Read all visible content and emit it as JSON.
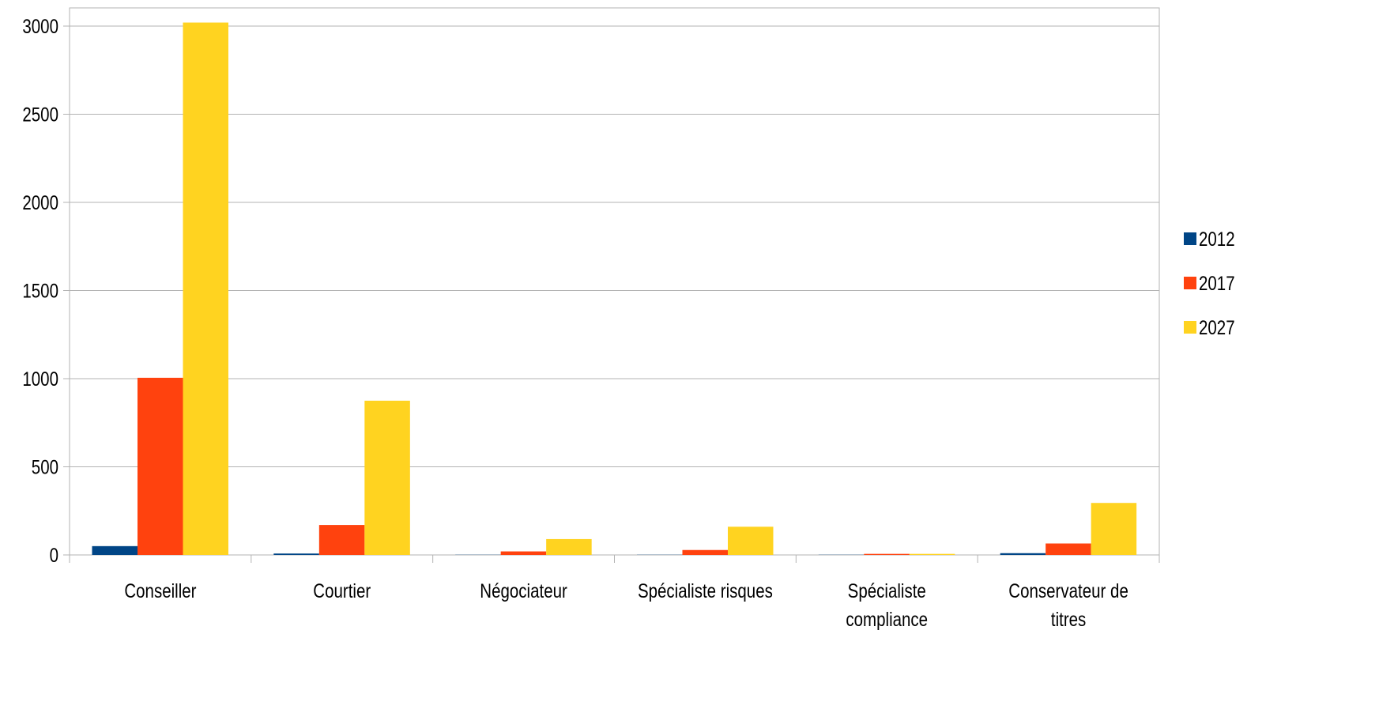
{
  "chart_data": {
    "type": "bar",
    "title": "",
    "xlabel": "",
    "ylabel": "",
    "ylim": [
      0,
      3000
    ],
    "yticks": [
      0,
      500,
      1000,
      1500,
      2000,
      2500,
      3000
    ],
    "grid": true,
    "legend_position": "right",
    "categories": [
      [
        "Conseiller"
      ],
      [
        "Courtier"
      ],
      [
        "Négociateur"
      ],
      [
        "Spécialiste risques"
      ],
      [
        "Spécialiste",
        "compliance"
      ],
      [
        "Conservateur de",
        "titres"
      ]
    ],
    "series": [
      {
        "name": "2012",
        "color": "#004586",
        "values": [
          50,
          8,
          1,
          1,
          1,
          10
        ]
      },
      {
        "name": "2017",
        "color": "#ff420e",
        "values": [
          1005,
          170,
          20,
          28,
          6,
          65
        ]
      },
      {
        "name": "2027",
        "color": "#ffd320",
        "values": [
          3020,
          875,
          90,
          160,
          6,
          295
        ]
      }
    ]
  }
}
